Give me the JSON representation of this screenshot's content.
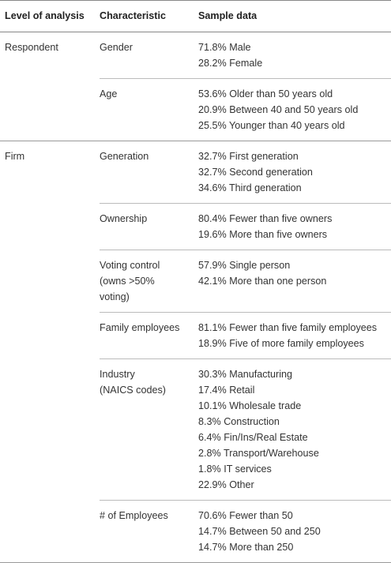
{
  "table": {
    "header": [
      "Level of analysis",
      "Characteristic",
      "Sample data"
    ],
    "groups": [
      {
        "level": "Respondent",
        "rows": [
          {
            "characteristic": [
              "Gender"
            ],
            "data": [
              "71.8% Male",
              "28.2% Female"
            ]
          },
          {
            "characteristic": [
              "Age"
            ],
            "data": [
              "53.6% Older than 50 years old",
              "20.9% Between 40 and 50 years old",
              "25.5% Younger than 40 years old"
            ]
          }
        ]
      },
      {
        "level": "Firm",
        "rows": [
          {
            "characteristic": [
              "Generation"
            ],
            "data": [
              "32.7% First generation",
              "32.7% Second generation",
              "34.6% Third generation"
            ]
          },
          {
            "characteristic": [
              "Ownership"
            ],
            "data": [
              "80.4% Fewer than five owners",
              "19.6% More than five owners"
            ]
          },
          {
            "characteristic": [
              "Voting control",
              "(owns >50%",
              "voting)"
            ],
            "data": [
              "57.9% Single person",
              "42.1% More than one person"
            ]
          },
          {
            "characteristic": [
              "Family employees"
            ],
            "data": [
              "81.1% Fewer than five family employees",
              "18.9% Five of more family employees"
            ]
          },
          {
            "characteristic": [
              "Industry",
              "(NAICS codes)"
            ],
            "data": [
              "30.3% Manufacturing",
              "17.4% Retail",
              "10.1% Wholesale trade",
              "8.3% Construction",
              "6.4% Fin/Ins/Real Estate",
              "2.8% Transport/Warehouse",
              "1.8% IT services",
              "22.9% Other"
            ]
          },
          {
            "characteristic": [
              "# of Employees"
            ],
            "data": [
              "70.6% Fewer than 50",
              "14.7% Between 50 and 250",
              "14.7% More than 250"
            ]
          }
        ]
      }
    ]
  }
}
